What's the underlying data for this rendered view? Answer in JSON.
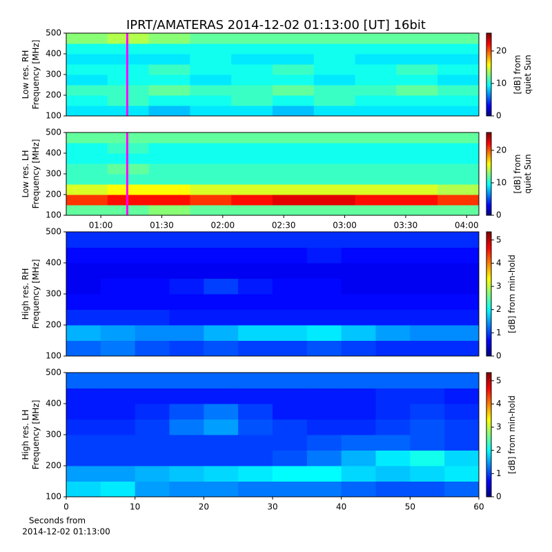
{
  "title": "IPRT/AMATERAS 2014-12-02 01:13:00 [UT]   16bit",
  "chart_data": [
    {
      "type": "heatmap",
      "ylabel": [
        "Low res. RH",
        "Frequency [MHz]"
      ],
      "colormap": "jet",
      "xlim": [
        43,
        246
      ],
      "ylim": [
        100,
        500
      ],
      "yticks": [
        100,
        200,
        300,
        400,
        500
      ],
      "zlim": [
        0,
        25.5
      ],
      "zticks": [
        0,
        10,
        20
      ],
      "colorbar_label": [
        "[dB] from",
        "quiet Sun"
      ],
      "marker_time": 73,
      "marker_color": "#ff00ff",
      "z": [
        [
          9,
          9,
          8,
          9,
          9,
          8,
          9,
          9,
          9,
          9
        ],
        [
          10,
          11,
          10,
          10,
          11,
          10,
          11,
          10,
          10,
          10
        ],
        [
          11,
          11,
          12,
          11,
          11,
          12,
          11,
          11,
          12,
          11
        ],
        [
          9,
          10,
          10,
          9,
          10,
          10,
          9,
          10,
          10,
          9
        ],
        [
          10,
          10,
          11,
          10,
          10,
          11,
          10,
          10,
          11,
          10
        ],
        [
          9,
          9,
          9,
          10,
          9,
          9,
          10,
          9,
          9,
          9
        ],
        [
          10,
          10,
          10,
          10,
          10,
          10,
          10,
          10,
          10,
          10
        ],
        [
          13,
          14,
          13,
          12,
          12,
          12,
          12,
          12,
          12,
          12
        ]
      ]
    },
    {
      "type": "heatmap",
      "ylabel": [
        "Low res. LH",
        "Frequency [MHz]"
      ],
      "colormap": "jet",
      "xlim": [
        43,
        246
      ],
      "ylim": [
        100,
        500
      ],
      "yticks": [
        100,
        200,
        300,
        400,
        500
      ],
      "xticks": [
        {
          "value": 60,
          "label": "01:00"
        },
        {
          "value": 90,
          "label": "01:30"
        },
        {
          "value": 120,
          "label": "02:00"
        },
        {
          "value": 150,
          "label": "02:30"
        },
        {
          "value": 180,
          "label": "03:00"
        },
        {
          "value": 210,
          "label": "03:30"
        },
        {
          "value": 240,
          "label": "04:00"
        }
      ],
      "zlim": [
        0,
        25.5
      ],
      "zticks": [
        0,
        10,
        20
      ],
      "colorbar_label": [
        "[dB] from",
        "quiet Sun"
      ],
      "marker_time": 73,
      "marker_color": "#ff00ff",
      "z": [
        [
          12,
          12,
          13,
          12,
          12,
          12,
          12,
          12,
          12,
          12
        ],
        [
          21,
          22,
          22,
          21,
          22,
          23,
          23,
          22,
          22,
          21
        ],
        [
          15,
          16,
          16,
          15,
          15,
          15,
          15,
          15,
          15,
          14
        ],
        [
          11,
          11,
          11,
          11,
          11,
          11,
          11,
          11,
          11,
          11
        ],
        [
          11,
          12,
          11,
          11,
          11,
          11,
          11,
          11,
          11,
          11
        ],
        [
          10,
          10,
          10,
          10,
          10,
          10,
          10,
          10,
          10,
          10
        ],
        [
          10,
          11,
          10,
          10,
          10,
          10,
          10,
          10,
          10,
          10
        ],
        [
          12,
          12,
          12,
          12,
          12,
          12,
          12,
          12,
          12,
          12
        ]
      ]
    },
    {
      "type": "heatmap",
      "ylabel": [
        "High res. RH",
        "Frequency [MHz]"
      ],
      "colormap": "jet",
      "xlim": [
        0,
        60
      ],
      "ylim": [
        100,
        500
      ],
      "yticks": [
        100,
        200,
        300,
        400,
        500
      ],
      "zlim": [
        0,
        5.35
      ],
      "zticks": [
        0,
        1,
        2,
        3,
        4,
        5
      ],
      "colorbar_label": [
        "[dB] from min-hold"
      ],
      "z": [
        [
          1.2,
          1.3,
          1.1,
          1.0,
          1.1,
          1.0,
          1.0,
          1.1,
          1.0,
          0.9,
          0.9,
          0.9
        ],
        [
          1.6,
          1.5,
          1.4,
          1.4,
          1.6,
          1.8,
          1.8,
          1.9,
          1.7,
          1.5,
          1.4,
          1.4
        ],
        [
          0.9,
          0.9,
          0.9,
          0.8,
          0.8,
          0.8,
          0.8,
          0.8,
          0.8,
          0.8,
          0.8,
          0.8
        ],
        [
          0.7,
          0.7,
          0.7,
          0.7,
          0.7,
          0.7,
          0.7,
          0.7,
          0.7,
          0.7,
          0.7,
          0.7
        ],
        [
          0.6,
          0.7,
          0.7,
          0.8,
          1.0,
          0.8,
          0.7,
          0.7,
          0.6,
          0.6,
          0.6,
          0.6
        ],
        [
          0.6,
          0.6,
          0.6,
          0.6,
          0.6,
          0.6,
          0.6,
          0.6,
          0.6,
          0.6,
          0.6,
          0.6
        ],
        [
          0.7,
          0.7,
          0.7,
          0.7,
          0.7,
          0.7,
          0.7,
          0.8,
          0.7,
          0.7,
          0.7,
          0.7
        ],
        [
          0.9,
          0.9,
          0.9,
          0.9,
          0.9,
          0.9,
          0.9,
          0.9,
          0.9,
          0.9,
          0.9,
          0.9
        ]
      ]
    },
    {
      "type": "heatmap",
      "ylabel": [
        "High res. LH",
        "Frequency [MHz]"
      ],
      "colormap": "jet",
      "xlim": [
        0,
        60
      ],
      "xticks": [
        0,
        10,
        20,
        30,
        40,
        50,
        60
      ],
      "xlabel": [
        "Seconds from",
        "2014-12-02 01:13:00"
      ],
      "ylim": [
        100,
        500
      ],
      "yticks": [
        100,
        200,
        300,
        400,
        500
      ],
      "zlim": [
        0,
        5.35
      ],
      "zticks": [
        0,
        1,
        2,
        3,
        4,
        5
      ],
      "colorbar_label": [
        "[dB] from min-hold"
      ],
      "z": [
        [
          1.8,
          1.9,
          1.5,
          1.4,
          1.4,
          1.3,
          1.3,
          1.3,
          1.2,
          1.1,
          1.1,
          1.2
        ],
        [
          1.5,
          1.5,
          1.6,
          1.7,
          1.8,
          1.9,
          2.0,
          2.0,
          1.8,
          1.7,
          1.8,
          1.9
        ],
        [
          1.0,
          1.0,
          1.0,
          1.0,
          1.0,
          1.0,
          1.1,
          1.3,
          1.6,
          1.9,
          2.1,
          1.8
        ],
        [
          1.0,
          1.0,
          1.0,
          1.0,
          1.0,
          1.0,
          1.0,
          1.1,
          1.2,
          1.2,
          1.1,
          1.0
        ],
        [
          0.9,
          0.9,
          1.0,
          1.3,
          1.5,
          1.1,
          1.0,
          0.9,
          0.9,
          1.0,
          1.1,
          1.0
        ],
        [
          0.8,
          0.8,
          0.9,
          1.1,
          1.3,
          1.0,
          0.8,
          0.8,
          0.8,
          0.9,
          1.0,
          0.9
        ],
        [
          0.8,
          0.8,
          0.8,
          0.8,
          0.8,
          0.8,
          0.8,
          0.8,
          0.8,
          0.9,
          0.9,
          0.8
        ],
        [
          1.2,
          1.2,
          1.2,
          1.2,
          1.2,
          1.2,
          1.2,
          1.2,
          1.2,
          1.2,
          1.2,
          1.2
        ]
      ]
    }
  ]
}
